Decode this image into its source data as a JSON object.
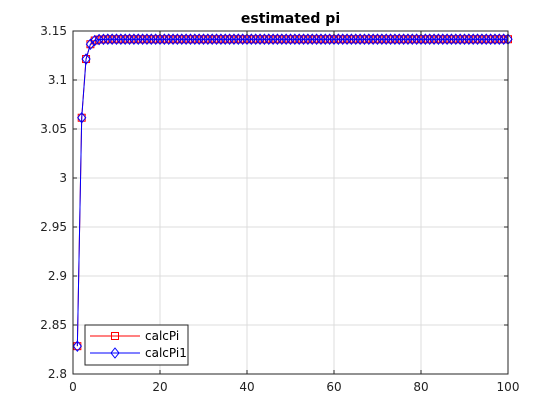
{
  "chart_data": {
    "type": "line",
    "title": "estimated pi",
    "xlabel": "",
    "ylabel": "",
    "xlim": [
      0,
      100
    ],
    "ylim": [
      2.8,
      3.15
    ],
    "x_ticks": [
      0,
      20,
      40,
      60,
      80,
      100
    ],
    "x_tick_labels": [
      "0",
      "20",
      "40",
      "60",
      "80",
      "100"
    ],
    "y_ticks": [
      2.8,
      2.85,
      2.9,
      2.95,
      3.0,
      3.05,
      3.1,
      3.15
    ],
    "y_tick_labels": [
      "2.8",
      "2.85",
      "2.9",
      "2.95",
      "3",
      "3.05",
      "3.1",
      "3.15"
    ],
    "grid": true,
    "legend_position": "bottom-left",
    "x": [
      1,
      2,
      3,
      4,
      5,
      6,
      7,
      8,
      9,
      10,
      11,
      12,
      13,
      14,
      15,
      16,
      17,
      18,
      19,
      20,
      21,
      22,
      23,
      24,
      25,
      26,
      27,
      28,
      29,
      30,
      31,
      32,
      33,
      34,
      35,
      36,
      37,
      38,
      39,
      40,
      41,
      42,
      43,
      44,
      45,
      46,
      47,
      48,
      49,
      50,
      51,
      52,
      53,
      54,
      55,
      56,
      57,
      58,
      59,
      60,
      61,
      62,
      63,
      64,
      65,
      66,
      67,
      68,
      69,
      70,
      71,
      72,
      73,
      74,
      75,
      76,
      77,
      78,
      79,
      80,
      81,
      82,
      83,
      84,
      85,
      86,
      87,
      88,
      89,
      90,
      91,
      92,
      93,
      94,
      95,
      96,
      97,
      98,
      99,
      100
    ],
    "series": [
      {
        "name": "calcPi",
        "color": "#ff0000",
        "marker": "square",
        "values": [
          2.8284,
          3.0615,
          3.1214,
          3.1365,
          3.1403,
          3.1413,
          3.1415,
          3.1416,
          3.1416,
          3.1416,
          3.1416,
          3.1416,
          3.1416,
          3.1416,
          3.1416,
          3.1416,
          3.1416,
          3.1416,
          3.1416,
          3.1416,
          3.1416,
          3.1416,
          3.1416,
          3.1416,
          3.1416,
          3.1416,
          3.1416,
          3.1416,
          3.1416,
          3.1416,
          3.1416,
          3.1416,
          3.1416,
          3.1416,
          3.1416,
          3.1416,
          3.1416,
          3.1416,
          3.1416,
          3.1416,
          3.1416,
          3.1416,
          3.1416,
          3.1416,
          3.1416,
          3.1416,
          3.1416,
          3.1416,
          3.1416,
          3.1416,
          3.1416,
          3.1416,
          3.1416,
          3.1416,
          3.1416,
          3.1416,
          3.1416,
          3.1416,
          3.1416,
          3.1416,
          3.1416,
          3.1416,
          3.1416,
          3.1416,
          3.1416,
          3.1416,
          3.1416,
          3.1416,
          3.1416,
          3.1416,
          3.1416,
          3.1416,
          3.1416,
          3.1416,
          3.1416,
          3.1416,
          3.1416,
          3.1416,
          3.1416,
          3.1416,
          3.1416,
          3.1416,
          3.1416,
          3.1416,
          3.1416,
          3.1416,
          3.1416,
          3.1416,
          3.1416,
          3.1416,
          3.1416,
          3.1416,
          3.1416,
          3.1416,
          3.1416,
          3.1416,
          3.1416,
          3.1416,
          3.1416,
          3.1416
        ]
      },
      {
        "name": "calcPi1",
        "color": "#0000ff",
        "marker": "diamond",
        "values": [
          2.8284,
          3.0615,
          3.1214,
          3.1365,
          3.1403,
          3.1413,
          3.1415,
          3.1416,
          3.1416,
          3.1416,
          3.1416,
          3.1416,
          3.1416,
          3.1416,
          3.1416,
          3.1416,
          3.1416,
          3.1416,
          3.1416,
          3.1416,
          3.1416,
          3.1416,
          3.1416,
          3.1416,
          3.1416,
          3.1416,
          3.1416,
          3.1416,
          3.1416,
          3.1416,
          3.1416,
          3.1416,
          3.1416,
          3.1416,
          3.1416,
          3.1416,
          3.1416,
          3.1416,
          3.1416,
          3.1416,
          3.1416,
          3.1416,
          3.1416,
          3.1416,
          3.1416,
          3.1416,
          3.1416,
          3.1416,
          3.1416,
          3.1416,
          3.1416,
          3.1416,
          3.1416,
          3.1416,
          3.1416,
          3.1416,
          3.1416,
          3.1416,
          3.1416,
          3.1416,
          3.1416,
          3.1416,
          3.1416,
          3.1416,
          3.1416,
          3.1416,
          3.1416,
          3.1416,
          3.1416,
          3.1416,
          3.1416,
          3.1416,
          3.1416,
          3.1416,
          3.1416,
          3.1416,
          3.1416,
          3.1416,
          3.1416,
          3.1416,
          3.1416,
          3.1416,
          3.1416,
          3.1416,
          3.1416,
          3.1416,
          3.1416,
          3.1416,
          3.1416,
          3.1416,
          3.1416,
          3.1416,
          3.1416,
          3.1416,
          3.1416,
          3.1416,
          3.1416,
          3.1416,
          3.1416,
          3.1416
        ]
      }
    ]
  }
}
